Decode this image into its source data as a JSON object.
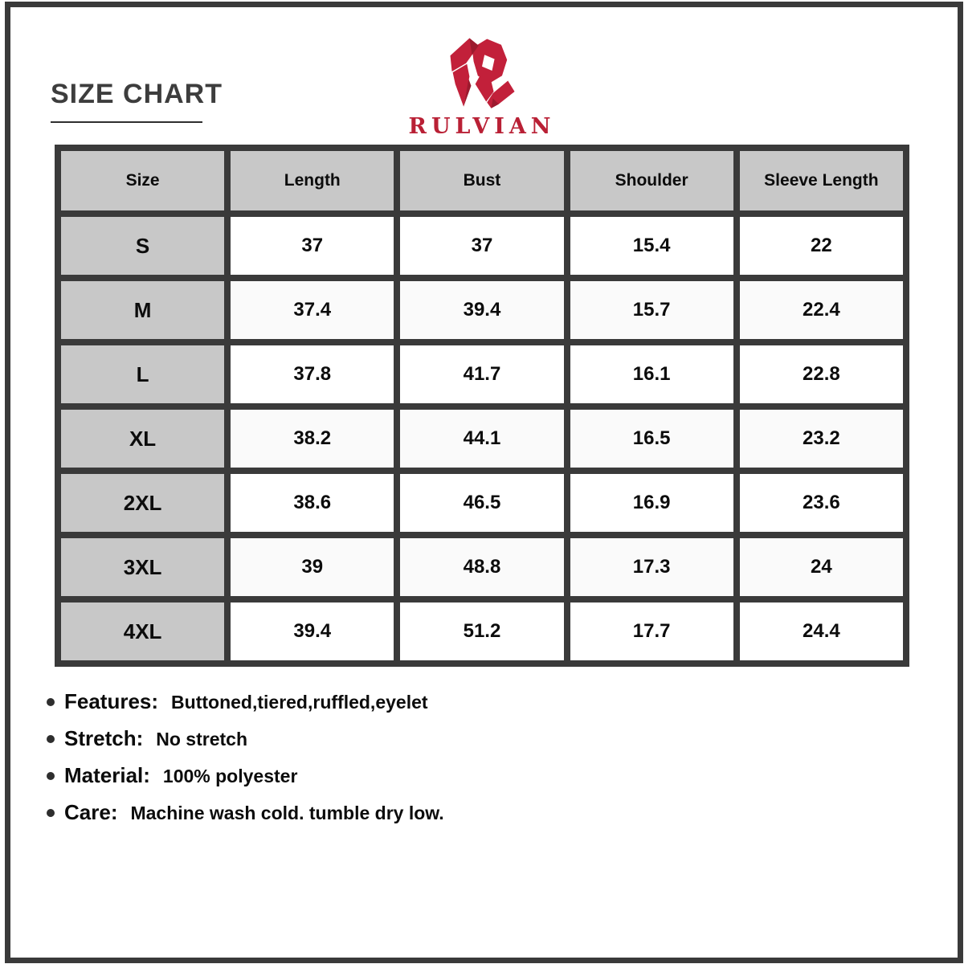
{
  "title": "SIZE CHART",
  "brand": {
    "name": "RULVIAN",
    "logo_icon": "rulvian-r-monogram",
    "accent_color": "#c2203a"
  },
  "table": {
    "columns": [
      "Size",
      "Length",
      "Bust",
      "Shoulder",
      "Sleeve Length"
    ],
    "rows": [
      [
        "S",
        "37",
        "37",
        "15.4",
        "22"
      ],
      [
        "M",
        "37.4",
        "39.4",
        "15.7",
        "22.4"
      ],
      [
        "L",
        "37.8",
        "41.7",
        "16.1",
        "22.8"
      ],
      [
        "XL",
        "38.2",
        "44.1",
        "16.5",
        "23.2"
      ],
      [
        "2XL",
        "38.6",
        "46.5",
        "16.9",
        "23.6"
      ],
      [
        "3XL",
        "39",
        "48.8",
        "17.3",
        "24"
      ],
      [
        "4XL",
        "39.4",
        "51.2",
        "17.7",
        "24.4"
      ]
    ]
  },
  "details": [
    {
      "label": "Features:",
      "value": "Buttoned,tiered,ruffled,eyelet"
    },
    {
      "label": "Stretch:",
      "value": "No stretch"
    },
    {
      "label": "Material:",
      "value": "100% polyester"
    },
    {
      "label": "Care:",
      "value": "Machine wash cold. tumble dry low."
    }
  ],
  "colors": {
    "frame_and_grid": "#3a3a3a",
    "header_cell_bg": "#c8c8c8",
    "alt_row_bg": "#fafafa",
    "title_text": "#3d3d3d",
    "brand_red": "#c2203a"
  }
}
